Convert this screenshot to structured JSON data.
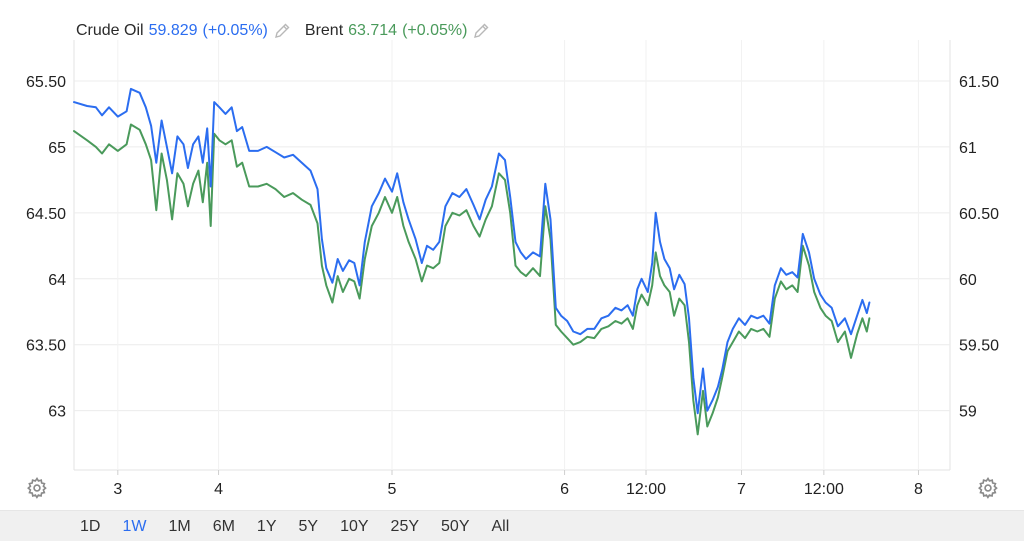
{
  "legend": {
    "series1": {
      "name": "Crude Oil",
      "value": "59.829",
      "change": "(+0.05%)",
      "color": "#2b6df0"
    },
    "series2": {
      "name": "Brent",
      "value": "63.714",
      "change": "(+0.05%)",
      "color": "#4a9a5b"
    }
  },
  "range_buttons": [
    "1D",
    "1W",
    "1M",
    "6M",
    "1Y",
    "5Y",
    "10Y",
    "25Y",
    "50Y",
    "All"
  ],
  "active_range": "1W",
  "icons": {
    "pencil": "pencil-icon",
    "settings": "gear-icon"
  },
  "chart_data": {
    "type": "line",
    "x_range": [
      0,
      100
    ],
    "left_axis": {
      "ticks": [
        65.5,
        65,
        64.5,
        64,
        63.5,
        63
      ],
      "labels": [
        "65.50",
        "65",
        "64.50",
        "64",
        "63.50",
        "63"
      ],
      "range": [
        62.55,
        65.75
      ]
    },
    "right_axis": {
      "ticks": [
        61.5,
        61,
        60.5,
        60,
        59.5,
        59
      ],
      "labels": [
        "61.50",
        "61",
        "60.50",
        "60",
        "59.50",
        "59"
      ],
      "range": [
        58.55,
        61.75
      ]
    },
    "x_ticks": [
      {
        "label": "3",
        "x": 5
      },
      {
        "label": "4",
        "x": 16.5
      },
      {
        "label": "5",
        "x": 36.3
      },
      {
        "label": "6",
        "x": 56
      },
      {
        "label": "12:00",
        "x": 65.3
      },
      {
        "label": "7",
        "x": 76.2
      },
      {
        "label": "12:00",
        "x": 85.6
      },
      {
        "label": "8",
        "x": 96.4
      }
    ],
    "grid": true,
    "series": [
      {
        "name": "Crude Oil",
        "axis": "right",
        "color": "#2b6df0",
        "points": [
          [
            0,
            61.34
          ],
          [
            1.5,
            61.31
          ],
          [
            2.5,
            61.3
          ],
          [
            3.2,
            61.24
          ],
          [
            4,
            61.3
          ],
          [
            5,
            61.23
          ],
          [
            6,
            61.27
          ],
          [
            6.5,
            61.44
          ],
          [
            7.5,
            61.41
          ],
          [
            8.2,
            61.3
          ],
          [
            8.8,
            61.16
          ],
          [
            9.4,
            60.88
          ],
          [
            10,
            61.2
          ],
          [
            10.6,
            61.0
          ],
          [
            11.2,
            60.8
          ],
          [
            11.8,
            61.08
          ],
          [
            12.5,
            61.02
          ],
          [
            13,
            60.84
          ],
          [
            13.6,
            61.02
          ],
          [
            14.2,
            61.08
          ],
          [
            14.7,
            60.88
          ],
          [
            15.2,
            61.14
          ],
          [
            15.6,
            60.7
          ],
          [
            16,
            61.34
          ],
          [
            16.6,
            61.3
          ],
          [
            17.3,
            61.25
          ],
          [
            18,
            61.3
          ],
          [
            18.6,
            61.12
          ],
          [
            19.2,
            61.15
          ],
          [
            20,
            60.97
          ],
          [
            21,
            60.97
          ],
          [
            22,
            61.0
          ],
          [
            23,
            60.96
          ],
          [
            24,
            60.92
          ],
          [
            25,
            60.94
          ],
          [
            26,
            60.88
          ],
          [
            27,
            60.82
          ],
          [
            27.8,
            60.68
          ],
          [
            28.3,
            60.3
          ],
          [
            28.8,
            60.08
          ],
          [
            29.5,
            59.97
          ],
          [
            30.1,
            60.15
          ],
          [
            30.7,
            60.06
          ],
          [
            31.4,
            60.14
          ],
          [
            32,
            60.12
          ],
          [
            32.6,
            59.95
          ],
          [
            33.2,
            60.28
          ],
          [
            34,
            60.55
          ],
          [
            34.8,
            60.65
          ],
          [
            35.5,
            60.76
          ],
          [
            36.3,
            60.66
          ],
          [
            36.9,
            60.8
          ],
          [
            37.6,
            60.58
          ],
          [
            38.2,
            60.45
          ],
          [
            39,
            60.3
          ],
          [
            39.7,
            60.12
          ],
          [
            40.3,
            60.25
          ],
          [
            41,
            60.22
          ],
          [
            41.7,
            60.28
          ],
          [
            42.4,
            60.55
          ],
          [
            43.2,
            60.65
          ],
          [
            44,
            60.62
          ],
          [
            44.8,
            60.68
          ],
          [
            45.6,
            60.56
          ],
          [
            46.3,
            60.45
          ],
          [
            47,
            60.6
          ],
          [
            47.7,
            60.7
          ],
          [
            48.5,
            60.95
          ],
          [
            49.2,
            60.9
          ],
          [
            49.8,
            60.62
          ],
          [
            50.4,
            60.28
          ],
          [
            51,
            60.2
          ],
          [
            51.6,
            60.15
          ],
          [
            52.4,
            60.2
          ],
          [
            53.2,
            60.17
          ],
          [
            53.8,
            60.72
          ],
          [
            54.4,
            60.45
          ],
          [
            55,
            59.78
          ],
          [
            55.6,
            59.72
          ],
          [
            56.3,
            59.68
          ],
          [
            57,
            59.6
          ],
          [
            57.8,
            59.58
          ],
          [
            58.6,
            59.62
          ],
          [
            59.4,
            59.62
          ],
          [
            60.2,
            59.7
          ],
          [
            61,
            59.72
          ],
          [
            61.8,
            59.78
          ],
          [
            62.5,
            59.76
          ],
          [
            63.2,
            59.8
          ],
          [
            63.8,
            59.72
          ],
          [
            64.3,
            59.92
          ],
          [
            64.8,
            60.0
          ],
          [
            65.5,
            59.9
          ],
          [
            66,
            60.12
          ],
          [
            66.4,
            60.5
          ],
          [
            66.9,
            60.28
          ],
          [
            67.4,
            60.15
          ],
          [
            68,
            60.08
          ],
          [
            68.5,
            59.92
          ],
          [
            69.1,
            60.03
          ],
          [
            69.7,
            59.96
          ],
          [
            70.2,
            59.7
          ],
          [
            70.7,
            59.25
          ],
          [
            71.2,
            58.98
          ],
          [
            71.8,
            59.32
          ],
          [
            72.3,
            59.0
          ],
          [
            72.9,
            59.08
          ],
          [
            73.5,
            59.18
          ],
          [
            74,
            59.31
          ],
          [
            74.6,
            59.52
          ],
          [
            75.2,
            59.62
          ],
          [
            75.9,
            59.7
          ],
          [
            76.6,
            59.65
          ],
          [
            77.3,
            59.72
          ],
          [
            78,
            59.7
          ],
          [
            78.7,
            59.72
          ],
          [
            79.4,
            59.66
          ],
          [
            80,
            59.95
          ],
          [
            80.7,
            60.08
          ],
          [
            81.3,
            60.03
          ],
          [
            82,
            60.05
          ],
          [
            82.6,
            60.01
          ],
          [
            83.2,
            60.34
          ],
          [
            83.9,
            60.2
          ],
          [
            84.5,
            60.0
          ],
          [
            85.2,
            59.88
          ],
          [
            85.8,
            59.82
          ],
          [
            86.5,
            59.78
          ],
          [
            87.2,
            59.64
          ],
          [
            88,
            59.7
          ],
          [
            88.7,
            59.58
          ],
          [
            89.4,
            59.72
          ],
          [
            90,
            59.84
          ],
          [
            90.5,
            59.74
          ],
          [
            90.8,
            59.82
          ]
        ]
      },
      {
        "name": "Brent",
        "axis": "left",
        "color": "#4a9a5b",
        "points": [
          [
            0,
            65.12
          ],
          [
            1.5,
            65.05
          ],
          [
            2.5,
            65.0
          ],
          [
            3.2,
            64.95
          ],
          [
            4,
            65.02
          ],
          [
            5,
            64.97
          ],
          [
            6,
            65.02
          ],
          [
            6.5,
            65.17
          ],
          [
            7.5,
            65.13
          ],
          [
            8.2,
            65.02
          ],
          [
            8.8,
            64.9
          ],
          [
            9.4,
            64.52
          ],
          [
            10,
            64.95
          ],
          [
            10.6,
            64.75
          ],
          [
            11.2,
            64.45
          ],
          [
            11.8,
            64.8
          ],
          [
            12.5,
            64.72
          ],
          [
            13,
            64.55
          ],
          [
            13.6,
            64.72
          ],
          [
            14.2,
            64.82
          ],
          [
            14.7,
            64.58
          ],
          [
            15.2,
            64.88
          ],
          [
            15.6,
            64.4
          ],
          [
            16,
            65.1
          ],
          [
            16.6,
            65.05
          ],
          [
            17.3,
            65.02
          ],
          [
            18,
            65.05
          ],
          [
            18.6,
            64.85
          ],
          [
            19.2,
            64.88
          ],
          [
            20,
            64.7
          ],
          [
            21,
            64.7
          ],
          [
            22,
            64.72
          ],
          [
            23,
            64.68
          ],
          [
            24,
            64.62
          ],
          [
            25,
            64.65
          ],
          [
            26,
            64.6
          ],
          [
            27,
            64.56
          ],
          [
            27.8,
            64.42
          ],
          [
            28.3,
            64.1
          ],
          [
            28.8,
            63.95
          ],
          [
            29.5,
            63.82
          ],
          [
            30.1,
            64.02
          ],
          [
            30.7,
            63.9
          ],
          [
            31.4,
            64.0
          ],
          [
            32,
            63.98
          ],
          [
            32.6,
            63.85
          ],
          [
            33.2,
            64.15
          ],
          [
            34,
            64.4
          ],
          [
            34.8,
            64.5
          ],
          [
            35.5,
            64.62
          ],
          [
            36.3,
            64.5
          ],
          [
            36.9,
            64.62
          ],
          [
            37.6,
            64.4
          ],
          [
            38.2,
            64.28
          ],
          [
            39,
            64.15
          ],
          [
            39.7,
            63.98
          ],
          [
            40.3,
            64.1
          ],
          [
            41,
            64.08
          ],
          [
            41.7,
            64.12
          ],
          [
            42.4,
            64.4
          ],
          [
            43.2,
            64.5
          ],
          [
            44,
            64.48
          ],
          [
            44.8,
            64.52
          ],
          [
            45.6,
            64.4
          ],
          [
            46.3,
            64.32
          ],
          [
            47,
            64.45
          ],
          [
            47.7,
            64.55
          ],
          [
            48.5,
            64.8
          ],
          [
            49.2,
            64.75
          ],
          [
            49.8,
            64.5
          ],
          [
            50.4,
            64.1
          ],
          [
            51,
            64.05
          ],
          [
            51.6,
            64.02
          ],
          [
            52.4,
            64.08
          ],
          [
            53.2,
            64.02
          ],
          [
            53.8,
            64.55
          ],
          [
            54.4,
            64.3
          ],
          [
            55,
            63.65
          ],
          [
            55.6,
            63.6
          ],
          [
            56.3,
            63.55
          ],
          [
            57,
            63.5
          ],
          [
            57.8,
            63.52
          ],
          [
            58.6,
            63.56
          ],
          [
            59.4,
            63.55
          ],
          [
            60.2,
            63.62
          ],
          [
            61,
            63.64
          ],
          [
            61.8,
            63.68
          ],
          [
            62.5,
            63.66
          ],
          [
            63.2,
            63.7
          ],
          [
            63.8,
            63.62
          ],
          [
            64.3,
            63.8
          ],
          [
            64.8,
            63.88
          ],
          [
            65.5,
            63.8
          ],
          [
            66,
            63.95
          ],
          [
            66.4,
            64.2
          ],
          [
            66.9,
            64.02
          ],
          [
            67.4,
            63.95
          ],
          [
            68,
            63.9
          ],
          [
            68.5,
            63.72
          ],
          [
            69.1,
            63.85
          ],
          [
            69.7,
            63.8
          ],
          [
            70.2,
            63.52
          ],
          [
            70.7,
            63.08
          ],
          [
            71.2,
            62.82
          ],
          [
            71.8,
            63.15
          ],
          [
            72.3,
            62.88
          ],
          [
            72.9,
            62.98
          ],
          [
            73.5,
            63.1
          ],
          [
            74,
            63.25
          ],
          [
            74.6,
            63.45
          ],
          [
            75.2,
            63.52
          ],
          [
            75.9,
            63.6
          ],
          [
            76.6,
            63.55
          ],
          [
            77.3,
            63.62
          ],
          [
            78,
            63.6
          ],
          [
            78.7,
            63.62
          ],
          [
            79.4,
            63.56
          ],
          [
            80,
            63.85
          ],
          [
            80.7,
            63.98
          ],
          [
            81.3,
            63.92
          ],
          [
            82,
            63.95
          ],
          [
            82.6,
            63.9
          ],
          [
            83.2,
            64.25
          ],
          [
            83.9,
            64.1
          ],
          [
            84.5,
            63.9
          ],
          [
            85.2,
            63.78
          ],
          [
            85.8,
            63.72
          ],
          [
            86.5,
            63.68
          ],
          [
            87.2,
            63.52
          ],
          [
            88,
            63.6
          ],
          [
            88.7,
            63.4
          ],
          [
            89.4,
            63.58
          ],
          [
            90,
            63.7
          ],
          [
            90.5,
            63.6
          ],
          [
            90.8,
            63.7
          ]
        ]
      }
    ]
  }
}
